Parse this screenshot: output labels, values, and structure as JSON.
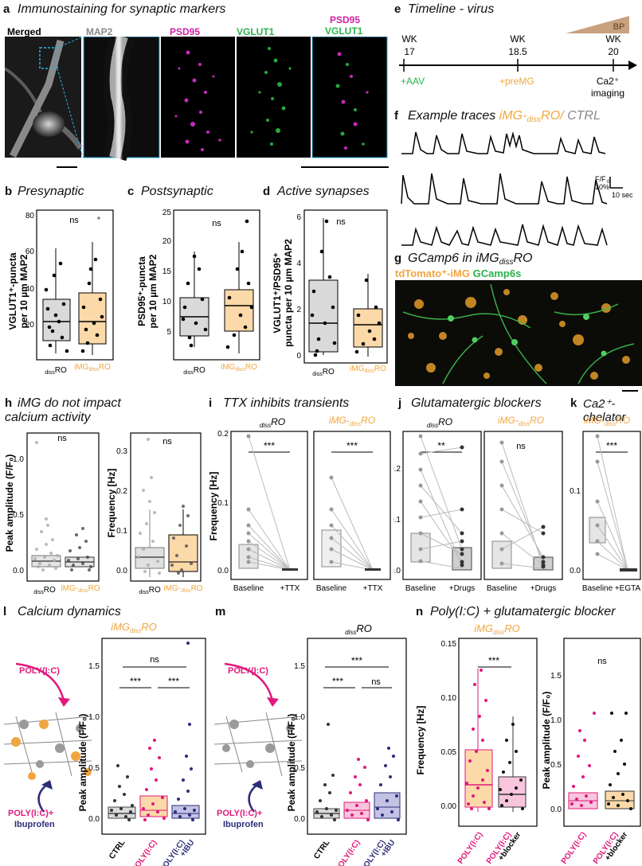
{
  "panels": {
    "a": {
      "letter": "a",
      "title": "Immunostaining for synaptic markers",
      "channels": {
        "merged": "Merged",
        "map2": "MAP2",
        "psd95": "PSD95",
        "vglut1": "VGLUT1",
        "combo_top": "PSD95",
        "combo_bottom": "VGLUT1"
      }
    },
    "b": {
      "letter": "b",
      "title": "Presynaptic",
      "ylabel_1": "VGLUT1⁺-puncta",
      "ylabel_2": "per 10 µm MAP2",
      "ns": "ns",
      "yticks": [
        "20",
        "40",
        "60",
        "80"
      ]
    },
    "c": {
      "letter": "c",
      "title": "Postsynaptic",
      "ylabel_1": "PSD95⁺-puncta",
      "ylabel_2": "per 10 µm MAP2",
      "ns": "ns",
      "yticks": [
        "5",
        "10",
        "15",
        "20",
        "25"
      ]
    },
    "d": {
      "letter": "d",
      "title": "Active synapses",
      "ylabel_1": "VGLUT1⁺/PSD95⁺",
      "ylabel_2": "puncta per 10 µm MAP2",
      "ns": "ns",
      "yticks": [
        "0",
        "2",
        "4",
        "6"
      ]
    },
    "e": {
      "letter": "e",
      "title": "Timeline - virus",
      "bp": "BP",
      "wk1": "WK",
      "wk1n": "17",
      "wk2": "WK",
      "wk2n": "18.5",
      "wk3": "WK",
      "wk3n": "20",
      "aav": "+AAV",
      "premg": "+preMG",
      "ca1": "Ca2⁺",
      "ca2": "imaging"
    },
    "f": {
      "letter": "f",
      "title_a": "Example traces ",
      "title_b": "iMG-",
      "title_sub": "diss",
      "title_c": "RO/",
      "title_d": " CTRL",
      "scale_y": "F/F",
      "scale_y_sub": "0",
      "scale_pct": "10%",
      "scale_x": "10 sec"
    },
    "g": {
      "letter": "g",
      "title": "GCamp6 in iMG",
      "title_sub": "diss",
      "title_end": "RO",
      "legend_a": "tdTomato⁺-iMG",
      "legend_b": " GCamp6s"
    },
    "h": {
      "letter": "h",
      "title_1": "iMG do not impact",
      "title_2": "calcium activity",
      "ylabel_left": "Peak amplitude (F/F₀)",
      "ylabel_right": "Frequency [Hz]",
      "ns": "ns",
      "yticks_left": [
        "0.0",
        "0.5",
        "1.0"
      ],
      "yticks_right": [
        "0.0",
        "0.1",
        "0.2",
        "0.3"
      ]
    },
    "i": {
      "letter": "i",
      "title": "TTX inhibits transients",
      "ylabel": "Frequency [Hz]",
      "stars": "***",
      "yticks": [
        "0.0",
        "0.1",
        "0.2"
      ],
      "x_base": "Baseline",
      "x_treat": "+TTX"
    },
    "j": {
      "letter": "j",
      "title": "Glutamatergic blockers",
      "stars": "**",
      "ns": "ns",
      "yticks": [
        "0.0",
        "0.1",
        "0.2"
      ],
      "x_base": "Baseline",
      "x_treat": "+Drugs"
    },
    "k": {
      "letter": "k",
      "title": "Ca2⁺-chelator",
      "stars": "***",
      "yticks": [
        "0.0",
        "0.1"
      ],
      "x_base": "Baseline",
      "x_treat": "+EGTA"
    },
    "l": {
      "letter": "l",
      "title": "Calcium dynamics",
      "ylabel": "Peak amplitude (F/F₀)",
      "poly": "POLY(I:C)",
      "poly_ibu_1": "POLY(I:C)+",
      "poly_ibu_2": "Ibuprofen",
      "stars_1": "***",
      "stars_2": "***",
      "ns": "ns",
      "yticks": [
        "0.0",
        "0.5",
        "1.0",
        "1.5"
      ],
      "x": [
        "CTRL",
        "POLY(I:C)",
        "POLY(I:C)",
        "+IBU"
      ]
    },
    "m": {
      "letter": "m",
      "ylabel": "Peak amplitude (F/F₀)",
      "poly": "POLY(I:C)",
      "poly_ibu_1": "POLY(I:C)+",
      "poly_ibu_2": "Ibuprofen",
      "stars_top": "***",
      "stars_1": "***",
      "ns": "ns",
      "yticks": [
        "0.0",
        "0.5",
        "1.0",
        "1.5"
      ],
      "x": [
        "CTRL",
        "POLY(I:C)",
        "POLY(I:C)",
        "+IBU"
      ]
    },
    "n": {
      "letter": "n",
      "title": "Poly(I:C) + glutamatergic blocker",
      "ylabel_left": "Frequency [Hz]",
      "ylabel_right": "Peak amplitude (F/F₀)",
      "stars": "***",
      "ns": "ns",
      "yticks_left": [
        "0.00",
        "0.05",
        "0.10",
        "0.15"
      ],
      "yticks_right": [
        "0.0",
        "0.5",
        "1.0",
        "1.5"
      ],
      "x": [
        "POLY(I:C)",
        "POLY(I:C)",
        "+blocker"
      ]
    }
  },
  "group_labels": {
    "pre": "diss",
    "ro": "RO",
    "img": "iMG",
    "img_sub": "diss",
    "img_ro": "RO",
    "img_dash": "iMG-"
  },
  "colors": {
    "orange": "#f0a640",
    "magenta": "#e0197d",
    "navy": "#2e2d7a",
    "green": "#2bb24c",
    "box_gray": "#dadada",
    "box_orange": "#fcd9a8",
    "box_pink": "#f8c5dd",
    "box_navy": "#c3c2e4"
  }
}
